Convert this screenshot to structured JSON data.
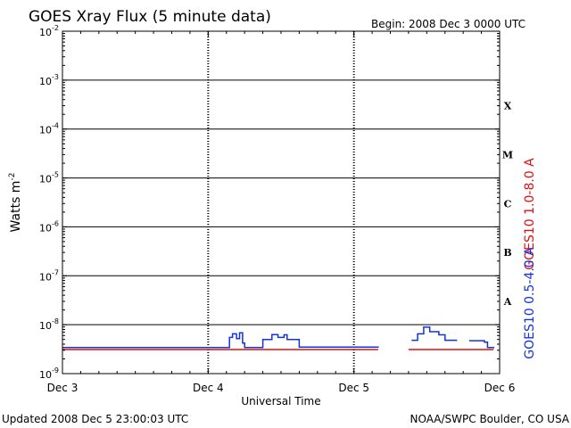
{
  "header": {
    "title": "GOES Xray Flux (5 minute data)",
    "begin": "Begin:  2008 Dec 3 0000 UTC"
  },
  "footer": {
    "updated": "Updated 2008 Dec  5 23:00:03 UTC",
    "source": "NOAA/SWPC Boulder, CO USA"
  },
  "colors": {
    "long_channel": "#dd1111",
    "short_channel": "#1133dd",
    "axes": "#000000"
  },
  "chart_data": {
    "type": "line",
    "log_scale_y": true,
    "ylim": [
      1e-09,
      0.01
    ],
    "xlim": [
      "2008-12-03T00:00",
      "2008-12-06T00:00"
    ],
    "xlabel": "Universal Time",
    "ylabel": "Watts m",
    "ylabel_sup": "-2",
    "y_ticks": [
      {
        "value": 0.01,
        "exp": "-2"
      },
      {
        "value": 0.001,
        "exp": "-3"
      },
      {
        "value": 0.0001,
        "exp": "-4"
      },
      {
        "value": 1e-05,
        "exp": "-5"
      },
      {
        "value": 1e-06,
        "exp": "-6"
      },
      {
        "value": 1e-07,
        "exp": "-7"
      },
      {
        "value": 1e-08,
        "exp": "-8"
      },
      {
        "value": 1e-09,
        "exp": "-9"
      }
    ],
    "y_tick_base": "10",
    "x_ticks": [
      {
        "x": "2008-12-03T00:00",
        "label": "Dec 3"
      },
      {
        "x": "2008-12-04T00:00",
        "label": "Dec 4"
      },
      {
        "x": "2008-12-05T00:00",
        "label": "Dec 5"
      },
      {
        "x": "2008-12-06T00:00",
        "label": "Dec 6"
      }
    ],
    "flare_classes": [
      {
        "label": "X",
        "y": 0.0003
      },
      {
        "label": "M",
        "y": 3e-05
      },
      {
        "label": "C",
        "y": 3e-06
      },
      {
        "label": "B",
        "y": 3e-07
      },
      {
        "label": "A",
        "y": 3e-08
      }
    ],
    "grid": true,
    "series": [
      {
        "name": "GOES10 1.0-8.0 A",
        "color_key": "long_channel",
        "points": [
          [
            "2008-12-03T00:00",
            3.1e-09
          ],
          [
            "2008-12-04T00:00",
            3.1e-09
          ],
          [
            "2008-12-04T12:00",
            3.1e-09
          ],
          [
            "2008-12-05T00:00",
            3.1e-09
          ],
          [
            "2008-12-05T04:00",
            3.1e-09
          ],
          null,
          [
            "2008-12-05T09:00",
            3.1e-09
          ],
          [
            "2008-12-05T21:00",
            3.1e-09
          ],
          [
            "2008-12-05T23:00",
            3.1e-09
          ]
        ]
      },
      {
        "name": "GOES10 0.5-4.0 A",
        "color_key": "short_channel",
        "points": [
          [
            "2008-12-03T00:00",
            3.4e-09
          ],
          [
            "2008-12-04T03:00",
            3.4e-09
          ],
          [
            "2008-12-04T03:30",
            5.5e-09
          ],
          [
            "2008-12-04T04:00",
            6.5e-09
          ],
          [
            "2008-12-04T04:40",
            5.2e-09
          ],
          [
            "2008-12-04T05:10",
            6.8e-09
          ],
          [
            "2008-12-04T05:40",
            4.2e-09
          ],
          [
            "2008-12-04T06:00",
            3.4e-09
          ],
          [
            "2008-12-04T08:30",
            3.4e-09
          ],
          [
            "2008-12-04T09:00",
            5e-09
          ],
          [
            "2008-12-04T10:00",
            5e-09
          ],
          [
            "2008-12-04T10:30",
            6.3e-09
          ],
          [
            "2008-12-04T11:30",
            5.5e-09
          ],
          [
            "2008-12-04T12:30",
            6.2e-09
          ],
          [
            "2008-12-04T13:00",
            5e-09
          ],
          [
            "2008-12-04T14:30",
            5e-09
          ],
          [
            "2008-12-04T15:00",
            3.5e-09
          ],
          [
            "2008-12-05T04:00",
            3.4e-09
          ],
          null,
          [
            "2008-12-05T09:30",
            4.8e-09
          ],
          [
            "2008-12-05T10:30",
            6.5e-09
          ],
          [
            "2008-12-05T11:30",
            8.9e-09
          ],
          [
            "2008-12-05T12:30",
            7.2e-09
          ],
          [
            "2008-12-05T14:00",
            6.2e-09
          ],
          [
            "2008-12-05T15:00",
            4.8e-09
          ],
          [
            "2008-12-05T17:00",
            4.8e-09
          ],
          null,
          [
            "2008-12-05T19:00",
            4.7e-09
          ],
          [
            "2008-12-05T21:30",
            4.4e-09
          ],
          [
            "2008-12-05T22:00",
            3.4e-09
          ],
          [
            "2008-12-05T23:00",
            3.3e-09
          ]
        ]
      }
    ]
  }
}
